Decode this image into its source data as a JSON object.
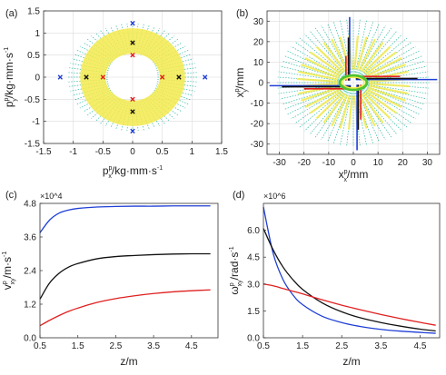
{
  "chart_data": [
    {
      "panel_label": "(a)",
      "type": "scatter",
      "xlabel_main": "p",
      "xlabel_sup": "p",
      "xlabel_sub": "x",
      "xlabel_unit": "/kg·mm·s",
      "xlabel_exp": "-1",
      "ylabel_main": "p",
      "ylabel_sup": "p",
      "ylabel_sub": "y",
      "ylabel_unit": "/kg·mm·s",
      "ylabel_exp": "-1",
      "xlim": [
        -1.5,
        1.5
      ],
      "ylim": [
        -1.5,
        1.5
      ],
      "xticks": [
        -1.5,
        -1,
        -0.5,
        0,
        0.5,
        1,
        1.5
      ],
      "xtick_labels": [
        "-1.5",
        "-1",
        "-0.5",
        "0",
        "0.5",
        "1",
        "1.5"
      ],
      "yticks": [
        -1.5,
        -1,
        -0.5,
        0,
        0.5,
        1,
        1.5
      ],
      "ytick_labels": [
        "-1.5",
        "-1",
        "-0.5",
        "0",
        "0.5",
        "1",
        "1.5"
      ],
      "grid": true,
      "ring": {
        "rx_inner": 0.42,
        "ry_inner": 0.58,
        "rx_outer": 0.92,
        "ry_outer": 1.06
      },
      "ring_color": "#f3ea4e",
      "spoke_color": "#2fb9a6",
      "blue_points": [
        [
          -1.22,
          0
        ],
        [
          1.22,
          0
        ],
        [
          0,
          1.22
        ],
        [
          0,
          -1.22
        ]
      ],
      "black_points": [
        [
          -0.78,
          0
        ],
        [
          0.78,
          0
        ],
        [
          0,
          0.78
        ],
        [
          0,
          -0.78
        ]
      ],
      "red_points": [
        [
          -0.5,
          0
        ],
        [
          0.5,
          0
        ],
        [
          0,
          0.5
        ],
        [
          0,
          -0.5
        ]
      ],
      "series": [
        {
          "color": "#1f3fd6"
        },
        {
          "color": "#111111"
        },
        {
          "color": "#e02020"
        }
      ]
    },
    {
      "panel_label": "(b)",
      "type": "scatter",
      "xlabel_main": "x",
      "xlabel_sup": "p",
      "xlabel_sub": "x",
      "xlabel_unit": "/mm",
      "ylabel_main": "x",
      "ylabel_sup": "p",
      "ylabel_sub": "y",
      "ylabel_unit": "/mm",
      "xlim": [
        -35,
        35
      ],
      "ylim": [
        -35,
        35
      ],
      "xticks": [
        -30,
        -20,
        -10,
        0,
        10,
        20,
        30
      ],
      "xtick_labels": [
        "-30",
        "-20",
        "-10",
        "0",
        "10",
        "20",
        "30"
      ],
      "yticks": [
        -30,
        -20,
        -10,
        0,
        10,
        20,
        30
      ],
      "ytick_labels": [
        "-30",
        "-20",
        "-10",
        "0",
        "10",
        "20",
        "30"
      ],
      "grid": true,
      "ring": {
        "r_inner": 5,
        "r_outer": 28
      },
      "ring_color": "#f3ea4e",
      "spoke_color": "#2fb9a6",
      "inner_ring": {
        "rx": 5.5,
        "ry": 3.5
      },
      "inner_ring_color": "#4fc32f",
      "segments": [
        {
          "color": "#1f3fd6",
          "lines": [
            [
              [
                -34,
                -1.5
              ],
              [
                -1,
                -1.5
              ]
            ],
            [
              [
                1.5,
                -33
              ],
              [
                1.5,
                -1
              ]
            ],
            [
              [
                1,
                1.5
              ],
              [
                34,
                1.5
              ]
            ],
            [
              [
                -1.5,
                1
              ],
              [
                -1.5,
                32
              ]
            ]
          ]
        },
        {
          "color": "#111111",
          "lines": [
            [
              [
                -29,
                -2
              ],
              [
                -1,
                -2
              ]
            ],
            [
              [
                2,
                -23
              ],
              [
                2,
                -1
              ]
            ],
            [
              [
                1,
                2
              ],
              [
                26,
                2
              ]
            ],
            [
              [
                -2,
                1
              ],
              [
                -2,
                22
              ]
            ]
          ]
        },
        {
          "color": "#e02020",
          "lines": [
            [
              [
                -20,
                -3
              ],
              [
                -1,
                -3
              ]
            ],
            [
              [
                3,
                -18
              ],
              [
                3,
                -1
              ]
            ],
            [
              [
                1,
                3
              ],
              [
                19,
                3
              ]
            ],
            [
              [
                -3,
                1
              ],
              [
                -3,
                13
              ]
            ]
          ]
        }
      ]
    },
    {
      "panel_label": "(c)",
      "type": "line",
      "multiplier": "×10^4",
      "xlabel": "z/m",
      "ylabel_main": "v",
      "ylabel_sup": "p",
      "ylabel_sub": "xy",
      "ylabel_unit": "/m·s",
      "ylabel_exp": "-1",
      "xlim": [
        0.5,
        5.2
      ],
      "ylim": [
        0,
        4.8
      ],
      "xticks": [
        0.5,
        1.5,
        2.5,
        3.5,
        4.5
      ],
      "xtick_labels": [
        "0.5",
        "1.5",
        "2.5",
        "3.5",
        "4.5"
      ],
      "yticks": [
        0,
        1.2,
        2.4,
        3.6,
        4.8
      ],
      "ytick_labels": [
        "0.0",
        "1.2",
        "2.4",
        "3.6",
        "4.8"
      ],
      "grid": false,
      "x": [
        0.5,
        0.75,
        1.0,
        1.25,
        1.5,
        2.0,
        2.5,
        3.0,
        3.5,
        4.0,
        4.5,
        5.0
      ],
      "series": [
        {
          "color": "#1f3fd6",
          "values": [
            3.75,
            4.2,
            4.45,
            4.56,
            4.62,
            4.67,
            4.69,
            4.7,
            4.7,
            4.71,
            4.71,
            4.71
          ]
        },
        {
          "color": "#111111",
          "values": [
            1.38,
            1.95,
            2.3,
            2.52,
            2.65,
            2.82,
            2.9,
            2.94,
            2.97,
            2.99,
            3.0,
            3.0
          ]
        },
        {
          "color": "#e02020",
          "values": [
            0.43,
            0.62,
            0.79,
            0.94,
            1.06,
            1.26,
            1.4,
            1.5,
            1.58,
            1.64,
            1.68,
            1.71
          ]
        }
      ]
    },
    {
      "panel_label": "(d)",
      "type": "line",
      "multiplier": "×10^6",
      "xlabel": "z/m",
      "ylabel_main": "ω",
      "ylabel_sup": "p",
      "ylabel_sub": "xy",
      "ylabel_unit": "/rad·s",
      "ylabel_exp": "-1",
      "xlim": [
        0.5,
        5.0
      ],
      "ylim": [
        0,
        7.5
      ],
      "xticks": [
        0.5,
        1.5,
        2.5,
        3.5,
        4.5
      ],
      "xtick_labels": [
        "0.5",
        "1.5",
        "2.5",
        "3.5",
        "4.5"
      ],
      "yticks": [
        0,
        1.5,
        3.0,
        4.5,
        6.0
      ],
      "ytick_labels": [
        "0.0",
        "1.5",
        "3.0",
        "4.5",
        "6.0"
      ],
      "grid": false,
      "x": [
        0.5,
        0.75,
        1.0,
        1.25,
        1.5,
        2.0,
        2.5,
        3.0,
        3.5,
        4.0,
        4.5,
        4.9
      ],
      "series": [
        {
          "color": "#1f3fd6",
          "values": [
            7.3,
            4.7,
            3.25,
            2.4,
            1.85,
            1.2,
            0.85,
            0.62,
            0.47,
            0.37,
            0.3,
            0.25
          ]
        },
        {
          "color": "#111111",
          "values": [
            6.1,
            4.9,
            3.95,
            3.25,
            2.7,
            1.95,
            1.45,
            1.1,
            0.85,
            0.65,
            0.48,
            0.38
          ]
        },
        {
          "color": "#e02020",
          "values": [
            3.0,
            2.9,
            2.75,
            2.6,
            2.45,
            2.12,
            1.82,
            1.55,
            1.3,
            1.07,
            0.86,
            0.7
          ]
        }
      ]
    }
  ]
}
